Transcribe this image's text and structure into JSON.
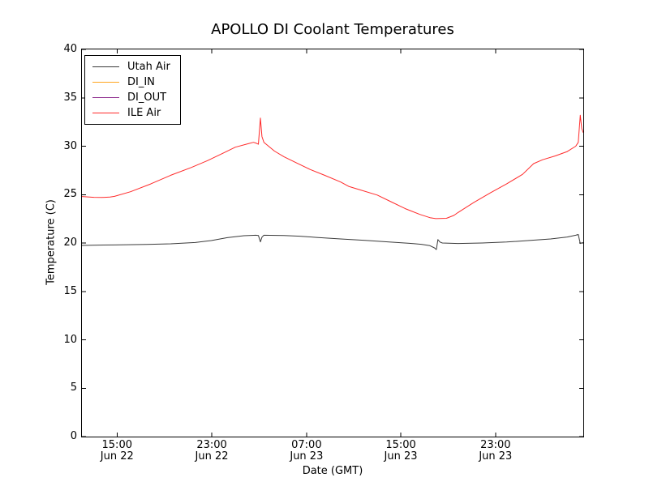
{
  "chart_data": {
    "type": "line",
    "title": "APOLLO DI Coolant Temperatures",
    "xlabel": "Date (GMT)",
    "ylabel": "Temperature (C)",
    "ylim": [
      0,
      40
    ],
    "grid": false,
    "legend_position": "upper left",
    "frame_color": "#000000",
    "yticks": [
      0,
      5,
      10,
      15,
      20,
      25,
      30,
      35,
      40
    ],
    "xticks": [
      {
        "time": "15:00",
        "date": "Jun 22",
        "frac": 0.07
      },
      {
        "time": "23:00",
        "date": "Jun 22",
        "frac": 0.259
      },
      {
        "time": "07:00",
        "date": "Jun 23",
        "frac": 0.448
      },
      {
        "time": "15:00",
        "date": "Jun 23",
        "frac": 0.636
      },
      {
        "time": "23:00",
        "date": "Jun 23",
        "frac": 0.825
      }
    ],
    "series": [
      {
        "name": "Utah Air",
        "color": "#3a3a3a",
        "points": [
          [
            0.0,
            19.75
          ],
          [
            0.032,
            19.78
          ],
          [
            0.065,
            19.8
          ],
          [
            0.129,
            19.85
          ],
          [
            0.177,
            19.92
          ],
          [
            0.226,
            20.05
          ],
          [
            0.258,
            20.25
          ],
          [
            0.29,
            20.55
          ],
          [
            0.323,
            20.75
          ],
          [
            0.347,
            20.8
          ],
          [
            0.352,
            20.78
          ],
          [
            0.356,
            20.12
          ],
          [
            0.359,
            20.6
          ],
          [
            0.363,
            20.8
          ],
          [
            0.403,
            20.78
          ],
          [
            0.435,
            20.7
          ],
          [
            0.468,
            20.58
          ],
          [
            0.516,
            20.42
          ],
          [
            0.565,
            20.27
          ],
          [
            0.613,
            20.1
          ],
          [
            0.653,
            19.97
          ],
          [
            0.677,
            19.87
          ],
          [
            0.694,
            19.72
          ],
          [
            0.703,
            19.5
          ],
          [
            0.707,
            19.32
          ],
          [
            0.71,
            20.35
          ],
          [
            0.714,
            20.1
          ],
          [
            0.719,
            20.0
          ],
          [
            0.75,
            19.95
          ],
          [
            0.798,
            20.0
          ],
          [
            0.847,
            20.1
          ],
          [
            0.895,
            20.27
          ],
          [
            0.935,
            20.42
          ],
          [
            0.968,
            20.62
          ],
          [
            0.985,
            20.8
          ],
          [
            0.99,
            20.88
          ],
          [
            0.994,
            19.95
          ],
          [
            1.0,
            20.05
          ]
        ]
      },
      {
        "name": "DI_IN",
        "color": "#ffa51e",
        "points": []
      },
      {
        "name": "DI_OUT",
        "color": "#8d2b8d",
        "points": []
      },
      {
        "name": "ILE Air",
        "color": "#ff2a2a",
        "points": [
          [
            0.0,
            24.8
          ],
          [
            0.024,
            24.72
          ],
          [
            0.04,
            24.7
          ],
          [
            0.056,
            24.75
          ],
          [
            0.065,
            24.82
          ],
          [
            0.097,
            25.3
          ],
          [
            0.137,
            26.1
          ],
          [
            0.177,
            27.0
          ],
          [
            0.218,
            27.8
          ],
          [
            0.25,
            28.5
          ],
          [
            0.282,
            29.3
          ],
          [
            0.306,
            29.9
          ],
          [
            0.331,
            30.25
          ],
          [
            0.342,
            30.4
          ],
          [
            0.348,
            30.3
          ],
          [
            0.352,
            30.2
          ],
          [
            0.356,
            32.9
          ],
          [
            0.359,
            31.0
          ],
          [
            0.363,
            30.4
          ],
          [
            0.371,
            30.05
          ],
          [
            0.384,
            29.5
          ],
          [
            0.403,
            28.9
          ],
          [
            0.427,
            28.3
          ],
          [
            0.455,
            27.6
          ],
          [
            0.484,
            27.0
          ],
          [
            0.516,
            26.3
          ],
          [
            0.532,
            25.85
          ],
          [
            0.548,
            25.6
          ],
          [
            0.589,
            24.95
          ],
          [
            0.613,
            24.35
          ],
          [
            0.645,
            23.55
          ],
          [
            0.674,
            22.95
          ],
          [
            0.694,
            22.62
          ],
          [
            0.706,
            22.52
          ],
          [
            0.727,
            22.55
          ],
          [
            0.742,
            22.85
          ],
          [
            0.75,
            23.15
          ],
          [
            0.782,
            24.2
          ],
          [
            0.815,
            25.2
          ],
          [
            0.847,
            26.1
          ],
          [
            0.879,
            27.1
          ],
          [
            0.901,
            28.2
          ],
          [
            0.919,
            28.6
          ],
          [
            0.944,
            29.0
          ],
          [
            0.968,
            29.45
          ],
          [
            0.985,
            30.0
          ],
          [
            0.99,
            30.4
          ],
          [
            0.994,
            33.2
          ],
          [
            0.997,
            31.8
          ],
          [
            1.0,
            31.4
          ]
        ]
      }
    ]
  }
}
